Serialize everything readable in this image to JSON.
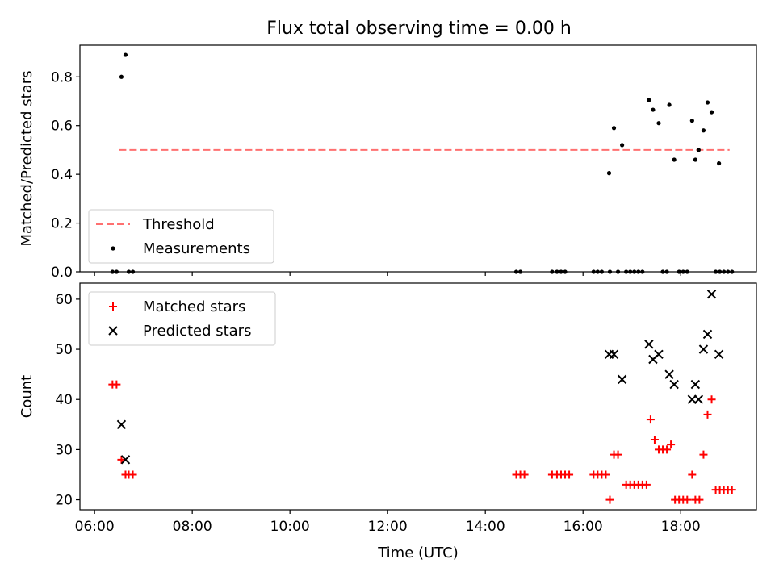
{
  "title": "Flux total observing time = 0.00 h",
  "chart_data": [
    {
      "type": "scatter",
      "panel": "top",
      "ylabel": "Matched/Predicted stars",
      "xlabel": "",
      "ylim": [
        0,
        0.93
      ],
      "yticks": [
        0.0,
        0.2,
        0.4,
        0.6,
        0.8
      ],
      "ytick_labels": [
        "0.0",
        "0.2",
        "0.4",
        "0.6",
        "0.8"
      ],
      "xlim": [
        "05:42",
        "19:33"
      ],
      "legend_position": "lower-left",
      "threshold": {
        "name": "Threshold",
        "y": 0.5,
        "x_start": "06:30",
        "x_end": "19:00",
        "color": "#ff7070",
        "style": "dashed"
      },
      "series": [
        {
          "name": "Measurements",
          "color": "#000000",
          "x": [
            "06:33",
            "06:38",
            "16:32",
            "16:38",
            "16:48",
            "17:21",
            "17:26",
            "17:33",
            "17:46",
            "17:52",
            "18:14",
            "18:18",
            "18:22",
            "18:28",
            "18:33",
            "18:38",
            "18:47",
            "06:22",
            "06:27",
            "06:42",
            "06:47",
            "14:38",
            "14:43",
            "15:22",
            "15:28",
            "15:33",
            "15:38",
            "16:13",
            "16:18",
            "16:23",
            "16:33",
            "16:43",
            "16:53",
            "16:58",
            "17:03",
            "17:08",
            "17:13",
            "17:38",
            "17:43",
            "17:58",
            "18:03",
            "18:08",
            "18:43",
            "18:48",
            "18:53",
            "18:58",
            "19:03"
          ],
          "y": [
            0.8,
            0.89,
            0.405,
            0.59,
            0.52,
            0.705,
            0.665,
            0.61,
            0.685,
            0.46,
            0.62,
            0.46,
            0.5,
            0.58,
            0.695,
            0.655,
            0.445,
            0,
            0,
            0,
            0,
            0,
            0,
            0,
            0,
            0,
            0,
            0,
            0,
            0,
            0,
            0,
            0,
            0,
            0,
            0,
            0,
            0,
            0,
            0,
            0,
            0,
            0,
            0,
            0,
            0,
            0
          ]
        }
      ]
    },
    {
      "type": "scatter",
      "panel": "bottom",
      "ylabel": "Count",
      "xlabel": "Time (UTC)",
      "ylim": [
        18,
        63.2
      ],
      "yticks": [
        20,
        30,
        40,
        50,
        60
      ],
      "ytick_labels": [
        "20",
        "30",
        "40",
        "50",
        "60"
      ],
      "xlim": [
        "05:42",
        "19:33"
      ],
      "xticks": [
        "06:00",
        "08:00",
        "10:00",
        "12:00",
        "14:00",
        "16:00",
        "18:00"
      ],
      "xtick_labels": [
        "06:00",
        "08:00",
        "10:00",
        "12:00",
        "14:00",
        "16:00",
        "18:00"
      ],
      "legend_position": "upper-left",
      "series": [
        {
          "name": "Matched stars",
          "marker": "plus",
          "color": "#ff0000",
          "x": [
            "06:22",
            "06:27",
            "06:33",
            "06:38",
            "06:42",
            "06:47",
            "14:38",
            "14:43",
            "14:48",
            "15:22",
            "15:28",
            "15:33",
            "15:38",
            "15:43",
            "16:13",
            "16:18",
            "16:23",
            "16:28",
            "16:33",
            "16:38",
            "16:43",
            "16:53",
            "16:58",
            "17:03",
            "17:08",
            "17:13",
            "17:18",
            "17:23",
            "17:28",
            "17:33",
            "17:38",
            "17:43",
            "17:48",
            "17:53",
            "17:58",
            "18:03",
            "18:08",
            "18:14",
            "18:18",
            "18:23",
            "18:28",
            "18:33",
            "18:38",
            "18:43",
            "18:48",
            "18:53",
            "18:58",
            "19:03"
          ],
          "y": [
            43,
            43,
            28,
            25,
            25,
            25,
            25,
            25,
            25,
            25,
            25,
            25,
            25,
            25,
            25,
            25,
            25,
            25,
            20,
            29,
            29,
            23,
            23,
            23,
            23,
            23,
            23,
            36,
            32,
            30,
            30,
            30,
            31,
            20,
            20,
            20,
            20,
            25,
            20,
            20,
            29,
            37,
            40,
            22,
            22,
            22,
            22,
            22
          ]
        },
        {
          "name": "Predicted stars",
          "marker": "x",
          "color": "#000000",
          "x": [
            "06:33",
            "06:38",
            "16:32",
            "16:38",
            "16:48",
            "17:21",
            "17:26",
            "17:33",
            "17:46",
            "17:52",
            "18:14",
            "18:18",
            "18:22",
            "18:28",
            "18:33",
            "18:38",
            "18:47"
          ],
          "y": [
            35,
            28,
            49,
            49,
            44,
            51,
            48,
            49,
            45,
            43,
            40,
            43,
            40,
            50,
            53,
            61,
            49
          ]
        }
      ]
    }
  ]
}
